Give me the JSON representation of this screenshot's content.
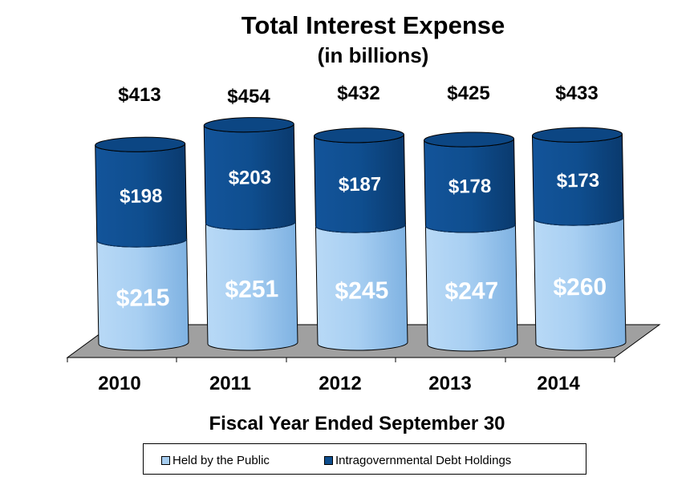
{
  "chart_data": {
    "type": "bar",
    "stacked": true,
    "title": "Total Interest Expense",
    "subtitle": "(in billions)",
    "xlabel": "Fiscal Year Ended September 30",
    "ylabel": "",
    "categories": [
      "2010",
      "2011",
      "2012",
      "2013",
      "2014"
    ],
    "totals": [
      "$413",
      "$454",
      "$432",
      "$425",
      "$433"
    ],
    "series": [
      {
        "name": "Held by the Public",
        "values": [
          215,
          251,
          245,
          247,
          260
        ],
        "labels": [
          "$215",
          "$251",
          "$245",
          "$247",
          "$260"
        ],
        "color": "#a6cdf0"
      },
      {
        "name": "Intragovernmental Debt Holdings",
        "values": [
          198,
          203,
          187,
          178,
          173
        ],
        "labels": [
          "$198",
          "$203",
          "$187",
          "$178",
          "$173"
        ],
        "color": "#0e4d8d"
      }
    ],
    "ylim": [
      0,
      480
    ],
    "grid": false,
    "legend_position": "bottom"
  },
  "colors": {
    "public": "#a6cdf0",
    "intragov": "#0e4d8d",
    "floor": "#a0a0a0"
  }
}
